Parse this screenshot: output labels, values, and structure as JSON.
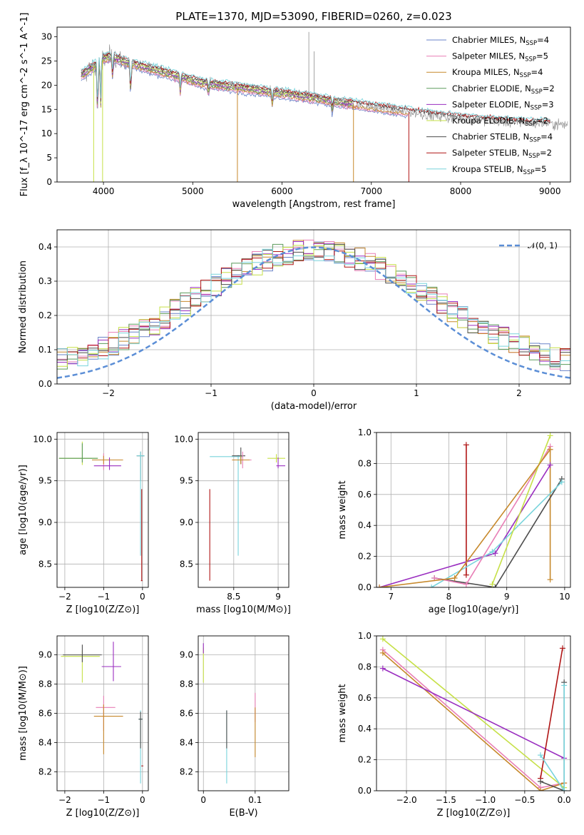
{
  "figure": {
    "title": "PLATE=1370, MJD=53090, FIBERID=0260, z=0.023",
    "colors": {
      "Chabrier MILES": "#6a83c8",
      "Salpeter MILES": "#e87fb6",
      "Kroupa MILES": "#c7892c",
      "Chabrier ELODIE": "#5b9b5b",
      "Salpeter ELODIE": "#9a2ec0",
      "Kroupa ELODIE": "#c6e047",
      "Chabrier STELIB": "#4d4d4d",
      "Salpeter STELIB": "#b01515",
      "Kroupa STELIB": "#78d4dc",
      "data": "#8c8c8c",
      "gaussian": "#5b8ed6"
    }
  },
  "chart_data": [
    {
      "id": "spectrum",
      "type": "line",
      "title": "PLATE=1370, MJD=53090, FIBERID=0260, z=0.023",
      "xlabel": "wavelength [Angstrom, rest frame]",
      "ylabel": "Flux [f_λ 10^-17 erg cm^-2 s^-1 A^-1]",
      "xlim": [
        3480,
        9230
      ],
      "ylim": [
        0,
        32
      ],
      "xticks": [
        4000,
        5000,
        6000,
        7000,
        8000,
        9000
      ],
      "yticks": [
        0,
        5,
        10,
        15,
        20,
        25,
        30
      ],
      "grid": false,
      "legend_position": "top-right",
      "legend": [
        {
          "name": "Chabrier MILES",
          "nssp": "4"
        },
        {
          "name": "Salpeter MILES",
          "nssp": "5"
        },
        {
          "name": "Kroupa MILES",
          "nssp": "4"
        },
        {
          "name": "Chabrier ELODIE",
          "nssp": "2"
        },
        {
          "name": "Salpeter ELODIE",
          "nssp": "3"
        },
        {
          "name": "Kroupa ELODIE",
          "nssp": "2"
        },
        {
          "name": "Chabrier STELIB",
          "nssp": "4"
        },
        {
          "name": "Salpeter STELIB",
          "nssp": "2"
        },
        {
          "name": "Kroupa STELIB",
          "nssp": "5"
        }
      ],
      "continuum": [
        [
          3750,
          22
        ],
        [
          3900,
          24
        ],
        [
          4000,
          25.5
        ],
        [
          4100,
          26
        ],
        [
          4200,
          25
        ],
        [
          4300,
          24.5
        ],
        [
          4500,
          23.5
        ],
        [
          4700,
          22.5
        ],
        [
          4900,
          21.5
        ],
        [
          5100,
          20.5
        ],
        [
          5300,
          20
        ],
        [
          5500,
          19.5
        ],
        [
          5800,
          18.8
        ],
        [
          6000,
          18.3
        ],
        [
          6300,
          17.5
        ],
        [
          6600,
          16.6
        ],
        [
          6900,
          15.8
        ],
        [
          7200,
          15
        ],
        [
          7500,
          14.2
        ],
        [
          7800,
          13.5
        ],
        [
          8100,
          13
        ],
        [
          8400,
          12.5
        ],
        [
          8700,
          12.2
        ],
        [
          9000,
          12
        ],
        [
          9200,
          11.8
        ]
      ]
    },
    {
      "id": "residuals",
      "type": "histogram",
      "xlabel": "(data-model)/error",
      "ylabel": "Normed distribution",
      "xlim": [
        -2.5,
        2.5
      ],
      "ylim": [
        0,
        0.45
      ],
      "xticks": [
        -2,
        -1,
        0,
        1,
        2
      ],
      "xtick_labels": [
        "−2",
        "−1",
        "0",
        "1",
        "2"
      ],
      "yticks": [
        0.0,
        0.1,
        0.2,
        0.3,
        0.4
      ],
      "grid": true,
      "legend_position": "top-right",
      "reference_curve": {
        "label": "𝒩(0, 1)",
        "mean": 0,
        "sigma": 1
      }
    },
    {
      "id": "age-vs-Z",
      "type": "scatter",
      "xlabel": "Z [log10(Z/Z⊙)]",
      "ylabel": "age  [log10(age/yr)]",
      "xlim": [
        -2.2,
        0.15
      ],
      "ylim": [
        8.22,
        10.08
      ],
      "xticks": [
        -2,
        -1,
        0
      ],
      "xtick_labels": [
        "−2",
        "−1",
        "0"
      ],
      "yticks": [
        8.5,
        9.0,
        9.5,
        10.0
      ],
      "grid": true,
      "points": [
        {
          "series": "Kroupa ELODIE",
          "x": -1.55,
          "xerr": [
            0.6,
            0.4
          ],
          "y": 9.77,
          "yerr": [
            0.08,
            0.2
          ]
        },
        {
          "series": "Chabrier ELODIE",
          "x": -1.55,
          "xerr": [
            0.6,
            0.4
          ],
          "y": 9.77,
          "yerr": [
            0.05,
            0.18
          ]
        },
        {
          "series": "Salpeter MILES",
          "x": -1.0,
          "xerr": [
            0.2,
            0.4
          ],
          "y": 9.75,
          "yerr": [
            0.12,
            0.08
          ]
        },
        {
          "series": "Kroupa MILES",
          "x": -1.0,
          "xerr": [
            0.3,
            0.5
          ],
          "y": 9.75,
          "yerr": [
            0.05,
            0.05
          ]
        },
        {
          "series": "Salpeter ELODIE",
          "x": -0.85,
          "xerr": [
            0.4,
            0.3
          ],
          "y": 9.68,
          "yerr": [
            0.05,
            0.1
          ]
        },
        {
          "series": "Chabrier STELIB",
          "x": -0.05,
          "xerr": [
            0.1,
            0.1
          ],
          "y": 9.8,
          "yerr": [
            0.3,
            0.05
          ]
        },
        {
          "series": "Kroupa STELIB",
          "x": -0.05,
          "xerr": [
            0.1,
            0.1
          ],
          "y": 9.8,
          "yerr": [
            1.2,
            0.05
          ]
        },
        {
          "series": "Salpeter STELIB",
          "x": -0.02,
          "xerr": [
            0.02,
            0.02
          ],
          "y": 8.3,
          "yerr": [
            0.0,
            1.1
          ]
        }
      ]
    },
    {
      "id": "age-vs-mass",
      "type": "scatter",
      "xlabel": "mass [log10(M/M⊙)]",
      "xlim": [
        8.1,
        9.12
      ],
      "ylim": [
        8.22,
        10.08
      ],
      "xticks": [
        8.5,
        9.0
      ],
      "yticks": [
        8.5,
        9.0,
        9.5,
        10.0
      ],
      "grid": true,
      "points": [
        {
          "series": "Kroupa STELIB",
          "x": 8.55,
          "xerr": [
            0.32,
            0.05
          ],
          "y": 9.79,
          "yerr": [
            1.19,
            0.02
          ]
        },
        {
          "series": "Chabrier STELIB",
          "x": 8.58,
          "xerr": [
            0.1,
            0.05
          ],
          "y": 9.8,
          "yerr": [
            0.1,
            0.1
          ]
        },
        {
          "series": "Salpeter MILES",
          "x": 8.6,
          "xerr": [
            0.1,
            0.1
          ],
          "y": 9.75,
          "yerr": [
            0.1,
            0.1
          ]
        },
        {
          "series": "Kroupa MILES",
          "x": 8.58,
          "xerr": [
            0.1,
            0.1
          ],
          "y": 9.75,
          "yerr": [
            0.05,
            0.05
          ]
        },
        {
          "series": "Kroupa ELODIE",
          "x": 8.98,
          "xerr": [
            0.1,
            0.1
          ],
          "y": 9.77,
          "yerr": [
            0.05,
            0.05
          ]
        },
        {
          "series": "Salpeter ELODIE",
          "x": 9.0,
          "xerr": [
            0.02,
            0.08
          ],
          "y": 9.68,
          "yerr": [
            0.03,
            0.1
          ]
        },
        {
          "series": "Salpeter STELIB",
          "x": 8.23,
          "xerr": [
            0.0,
            0.0
          ],
          "y": 8.3,
          "yerr": [
            0.0,
            1.1
          ]
        }
      ]
    },
    {
      "id": "massweight-vs-age",
      "type": "line",
      "xlabel": "age  [log10(age/yr)]",
      "ylabel": "mass weight",
      "xlim": [
        6.75,
        10.1
      ],
      "ylim": [
        0,
        1.0
      ],
      "xticks": [
        7,
        8,
        9,
        10
      ],
      "yticks": [
        0.0,
        0.2,
        0.4,
        0.6,
        0.8,
        1.0
      ],
      "grid": true,
      "series": [
        {
          "name": "Salpeter STELIB",
          "x": [
            8.3,
            8.3
          ],
          "y": [
            0.08,
            0.92
          ]
        },
        {
          "name": "Kroupa MILES",
          "x": [
            9.75,
            9.75
          ],
          "y": [
            0.05,
            0.89
          ]
        },
        {
          "name": "Salpeter ELODIE",
          "x": [
            6.8,
            8.8,
            9.75
          ],
          "y": [
            0.0,
            0.22,
            0.79
          ]
        },
        {
          "name": "Chabrier STELIB",
          "x": [
            7.75,
            8.8,
            9.95
          ],
          "y": [
            0.06,
            0.0,
            0.7
          ]
        },
        {
          "name": "Kroupa STELIB",
          "x": [
            7.7,
            8.75,
            9.95
          ],
          "y": [
            0.0,
            0.23,
            0.68
          ]
        },
        {
          "name": "Salpeter MILES",
          "x": [
            7.75,
            8.3,
            9.75
          ],
          "y": [
            0.06,
            0.02,
            0.91
          ]
        },
        {
          "name": "Kroupa ELODIE",
          "x": [
            8.75,
            9.75
          ],
          "y": [
            0.02,
            0.98
          ]
        },
        {
          "name": "Kroupa MILES",
          "x": [
            6.8,
            8.1,
            9.75
          ],
          "y": [
            0.0,
            0.06,
            0.89
          ]
        }
      ]
    },
    {
      "id": "mass-vs-Z",
      "type": "scatter",
      "xlabel": "Z [log10(Z/Z⊙)]",
      "ylabel": "mass [log10(M/M⊙)]",
      "xlim": [
        -2.2,
        0.15
      ],
      "ylim": [
        8.07,
        9.13
      ],
      "xticks": [
        -2,
        -1,
        0
      ],
      "xtick_labels": [
        "−2",
        "−1",
        "0"
      ],
      "yticks": [
        8.2,
        8.4,
        8.6,
        8.8,
        9.0
      ],
      "grid": true,
      "points": [
        {
          "series": "Kroupa ELODIE",
          "x": -1.55,
          "xerr": [
            0.55,
            0.45
          ],
          "y": 8.99,
          "yerr": [
            0.18,
            0.04
          ]
        },
        {
          "series": "Chabrier STELIB",
          "x": -1.55,
          "xerr": [
            0.5,
            0.5
          ],
          "y": 9.0,
          "yerr": [
            0.05,
            0.07
          ]
        },
        {
          "series": "Salpeter ELODIE",
          "x": -0.75,
          "xerr": [
            0.3,
            0.2
          ],
          "y": 8.92,
          "yerr": [
            0.1,
            0.17
          ]
        },
        {
          "series": "Salpeter MILES",
          "x": -1.0,
          "xerr": [
            0.2,
            0.3
          ],
          "y": 8.64,
          "yerr": [
            0.16,
            0.08
          ]
        },
        {
          "series": "Kroupa MILES",
          "x": -1.0,
          "xerr": [
            0.25,
            0.5
          ],
          "y": 8.58,
          "yerr": [
            0.26,
            0.08
          ]
        },
        {
          "series": "Kroupa STELIB",
          "x": -0.05,
          "xerr": [
            0.05,
            0.05
          ],
          "y": 8.56,
          "yerr": [
            0.44,
            0.06
          ]
        },
        {
          "series": "Chabrier STELIB",
          "x": -0.05,
          "xerr": [
            0.05,
            0.05
          ],
          "y": 8.56,
          "yerr": [
            0.2,
            0.05
          ]
        },
        {
          "series": "Salpeter STELIB",
          "x": -0.02,
          "xerr": [
            0.01,
            0.04
          ],
          "y": 8.24,
          "yerr": [
            0.0,
            0.0
          ]
        }
      ]
    },
    {
      "id": "mass-vs-ebv",
      "type": "scatter",
      "xlabel": "E(B-V)",
      "xlim": [
        -0.01,
        0.165
      ],
      "ylim": [
        8.07,
        9.13
      ],
      "xticks": [
        0.0,
        0.1
      ],
      "yticks": [
        8.2,
        8.4,
        8.6,
        8.8,
        9.0
      ],
      "grid": true,
      "points": [
        {
          "series": "Kroupa ELODIE",
          "x": 0.0,
          "xerr": [
            0.0,
            0.0
          ],
          "y": 8.99,
          "yerr": [
            0.18,
            0.06
          ]
        },
        {
          "series": "Salpeter ELODIE",
          "x": 0.0,
          "xerr": [
            0.0,
            0.0
          ],
          "y": 9.04,
          "yerr": [
            0.03,
            0.04
          ]
        },
        {
          "series": "Kroupa STELIB",
          "x": 0.045,
          "xerr": [
            0.0,
            0.0
          ],
          "y": 8.56,
          "yerr": [
            0.44,
            0.06
          ]
        },
        {
          "series": "Chabrier STELIB",
          "x": 0.045,
          "xerr": [
            0.0,
            0.0
          ],
          "y": 8.56,
          "yerr": [
            0.2,
            0.06
          ]
        },
        {
          "series": "Salpeter MILES",
          "x": 0.1,
          "xerr": [
            0.0,
            0.0
          ],
          "y": 8.64,
          "yerr": [
            0.1,
            0.1
          ]
        },
        {
          "series": "Kroupa MILES",
          "x": 0.1,
          "xerr": [
            0.0,
            0.0
          ],
          "y": 8.58,
          "yerr": [
            0.28,
            0.06
          ]
        }
      ]
    },
    {
      "id": "massweight-vs-Z",
      "type": "line",
      "xlabel": "Z [log10(Z/Z⊙)]",
      "ylabel": "mass weight",
      "xlim": [
        -2.38,
        0.08
      ],
      "ylim": [
        0,
        1.0
      ],
      "xticks": [
        -2.0,
        -1.5,
        -1.0,
        -0.5,
        0.0
      ],
      "xtick_labels": [
        "−2.0",
        "−1.5",
        "−1.0",
        "−0.5",
        "0.0"
      ],
      "yticks": [
        0.0,
        0.2,
        0.4,
        0.6,
        0.8,
        1.0
      ],
      "grid": true,
      "series": [
        {
          "name": "Kroupa ELODIE",
          "x": [
            -2.3,
            0.0
          ],
          "y": [
            0.98,
            0.02
          ]
        },
        {
          "name": "Salpeter MILES",
          "x": [
            -2.3,
            -0.3,
            0.0
          ],
          "y": [
            0.91,
            0.02,
            0.05
          ]
        },
        {
          "name": "Kroupa MILES",
          "x": [
            -2.3,
            -0.3,
            0.0
          ],
          "y": [
            0.89,
            0.0,
            0.05
          ]
        },
        {
          "name": "Salpeter ELODIE",
          "x": [
            -2.3,
            0.0
          ],
          "y": [
            0.79,
            0.21
          ]
        },
        {
          "name": "Salpeter STELIB",
          "x": [
            -0.3,
            -0.02
          ],
          "y": [
            0.08,
            0.92
          ]
        },
        {
          "name": "Chabrier STELIB",
          "x": [
            -0.3,
            0.0,
            0.0
          ],
          "y": [
            0.06,
            0.0,
            0.7
          ]
        },
        {
          "name": "Kroupa STELIB",
          "x": [
            -0.3,
            0.0,
            0.0
          ],
          "y": [
            0.23,
            0.0,
            0.68
          ]
        }
      ]
    }
  ]
}
